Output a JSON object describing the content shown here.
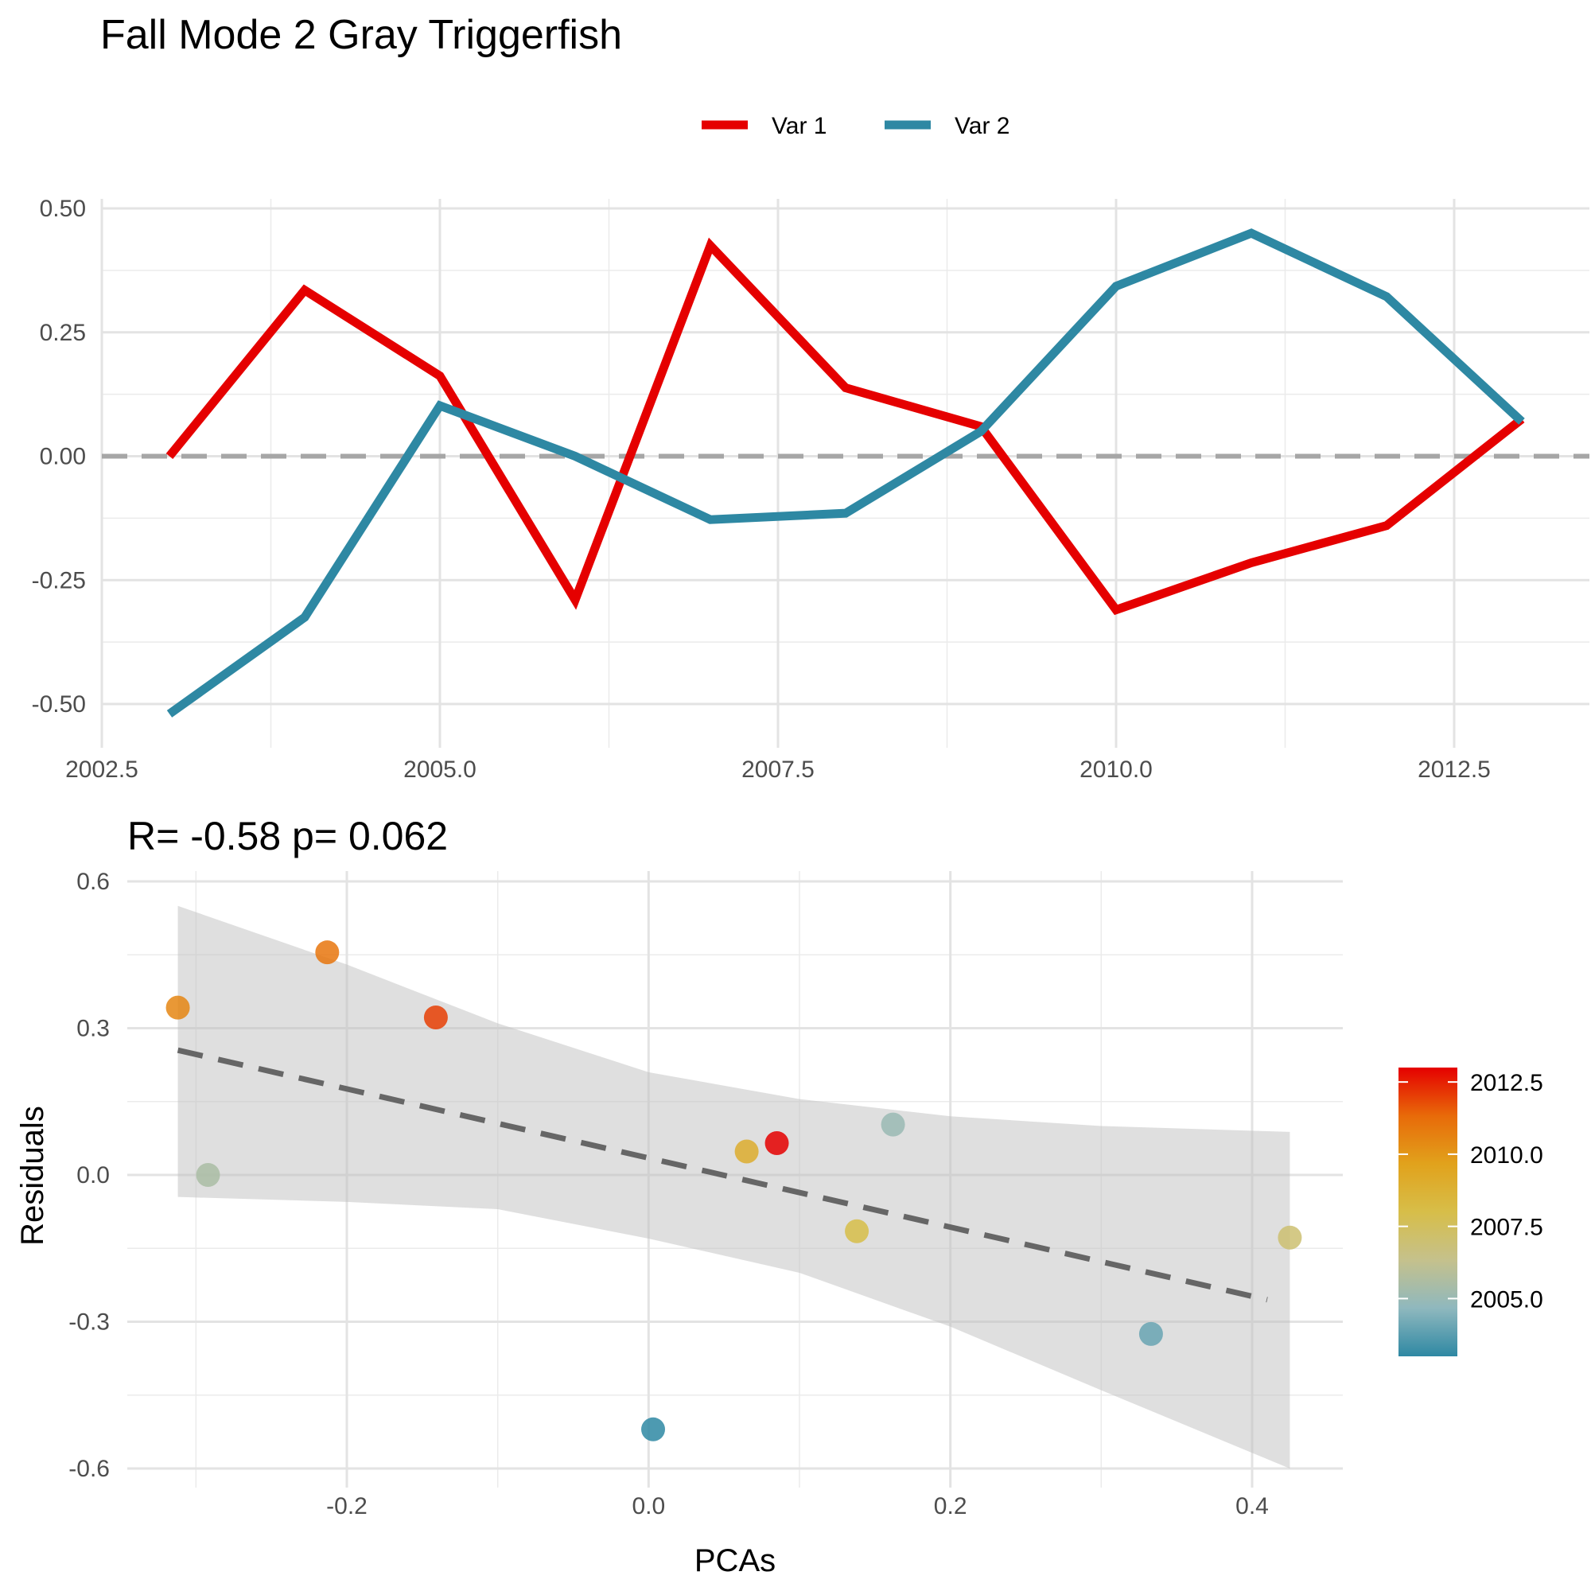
{
  "title": "Fall Mode 2 Gray Triggerfish",
  "chart_data": [
    {
      "type": "line",
      "x": [
        2003,
        2004,
        2005,
        2006,
        2007,
        2008,
        2009,
        2010,
        2011,
        2012,
        2013
      ],
      "series": [
        {
          "name": "Var 1",
          "color": "#E50000",
          "values": [
            0.0,
            0.335,
            0.162,
            -0.29,
            0.425,
            0.138,
            0.06,
            -0.31,
            -0.215,
            -0.14,
            0.075
          ]
        },
        {
          "name": "Var 2",
          "color": "#2E88A3",
          "values": [
            -0.52,
            -0.325,
            0.102,
            0.0,
            -0.128,
            -0.115,
            0.05,
            0.343,
            0.45,
            0.322,
            0.07
          ]
        }
      ],
      "xlim": [
        2002.5,
        2013.5
      ],
      "ylim": [
        -0.5,
        0.5
      ],
      "x_ticks": [
        "2002.5",
        "2005.0",
        "2007.5",
        "2010.0",
        "2012.5"
      ],
      "y_ticks": [
        "-0.50",
        "-0.25",
        "0.00",
        "0.25",
        "0.50"
      ],
      "reference_line": {
        "y": 0,
        "style": "dashed",
        "color": "#A6A6A6"
      },
      "legend_placement": "top",
      "grid": true
    },
    {
      "type": "scatter",
      "title": "R= -0.58  p= 0.062",
      "xlabel": "PCAs",
      "ylabel": "Residuals",
      "points": [
        {
          "x": -0.312,
          "y": 0.342,
          "year": 2010.5
        },
        {
          "x": -0.292,
          "y": 0.0,
          "year": 2005.5
        },
        {
          "x": -0.213,
          "y": 0.455,
          "year": 2011.0
        },
        {
          "x": -0.141,
          "y": 0.322,
          "year": 2012.0
        },
        {
          "x": 0.003,
          "y": -0.52,
          "year": 2003.0
        },
        {
          "x": 0.065,
          "y": 0.048,
          "year": 2009.0
        },
        {
          "x": 0.085,
          "y": 0.065,
          "year": 2013.0
        },
        {
          "x": 0.138,
          "y": -0.115,
          "year": 2008.0
        },
        {
          "x": 0.162,
          "y": 0.103,
          "year": 2005.0
        },
        {
          "x": 0.333,
          "y": -0.325,
          "year": 2004.0
        },
        {
          "x": 0.425,
          "y": -0.128,
          "year": 2007.0
        }
      ],
      "fit_line": {
        "x": [
          -0.312,
          0.41
        ],
        "y": [
          0.255,
          -0.255
        ],
        "style": "dashed",
        "color": "#666666"
      },
      "confidence_band": {
        "x": [
          -0.312,
          -0.2,
          -0.1,
          0.0,
          0.1,
          0.2,
          0.3,
          0.425
        ],
        "upper": [
          0.55,
          0.43,
          0.31,
          0.21,
          0.155,
          0.12,
          0.1,
          0.088
        ],
        "lower": [
          -0.045,
          -0.055,
          -0.07,
          -0.13,
          -0.2,
          -0.31,
          -0.44,
          -0.6
        ]
      },
      "xlim": [
        -0.345,
        0.46
      ],
      "ylim": [
        -0.6,
        0.6
      ],
      "x_ticks": [
        "-0.2",
        "0.0",
        "0.2",
        "0.4"
      ],
      "y_ticks": [
        "-0.6",
        "-0.3",
        "0.0",
        "0.3",
        "0.6"
      ],
      "colorbar": {
        "ticks": [
          "2005.0",
          "2007.5",
          "2010.0",
          "2012.5"
        ],
        "range": [
          2003,
          2013
        ],
        "colors": [
          "#2E88A3",
          "#8FB8BE",
          "#C5C18C",
          "#D7BE49",
          "#E1A21C",
          "#E86A09",
          "#E50000"
        ]
      },
      "grid": true
    }
  ]
}
